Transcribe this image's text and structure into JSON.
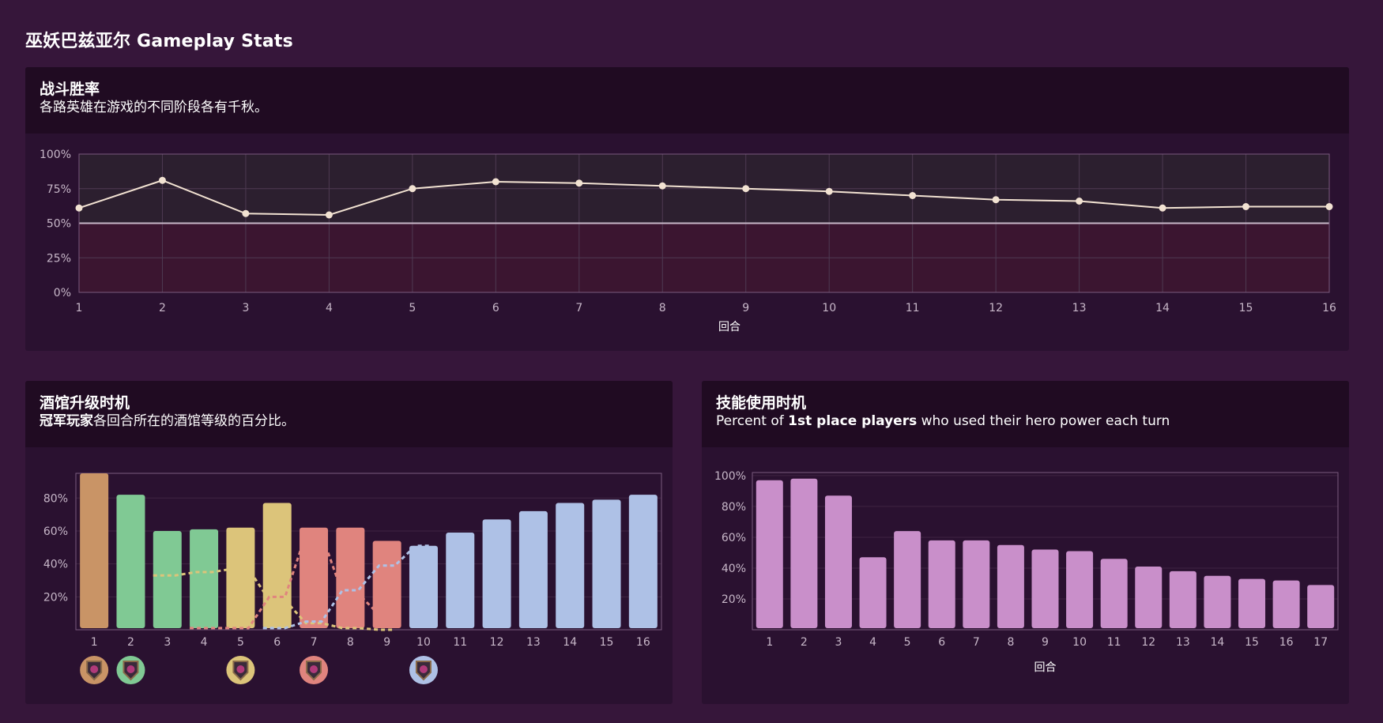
{
  "page": {
    "title": "巫妖巴兹亚尔 Gameplay Stats"
  },
  "colors": {
    "background": "#36163a",
    "panel": "#2a1130",
    "panel_header": "#200b22",
    "line": "#f2e2d2",
    "power_bar": "#c98fca",
    "tier_colors": [
      "#c99466",
      "#80c994",
      "#dcc47a",
      "#e0847e",
      "#aec1e6"
    ]
  },
  "winrate": {
    "title": "战斗胜率",
    "subtitle": "各路英雄在游戏的不同阶段各有千秋。"
  },
  "tavern": {
    "title": "酒馆升级时机",
    "subtitle_bold": "冠军玩家",
    "subtitle_rest": "各回合所在的酒馆等级的百分比。",
    "tier_icons": [
      "tier-1-icon",
      "tier-2-icon",
      "tier-3-icon",
      "tier-4-icon",
      "tier-5-icon"
    ]
  },
  "power": {
    "title": "技能使用时机",
    "subtitle_pre": "Percent of ",
    "subtitle_bold": "1st place players",
    "subtitle_post": " who used their hero power each turn"
  },
  "chart_data": [
    {
      "type": "line",
      "title": "战斗胜率",
      "xlabel": "回合",
      "ylabel": "",
      "x": [
        1,
        2,
        3,
        4,
        5,
        6,
        7,
        8,
        9,
        10,
        11,
        12,
        13,
        14,
        15,
        16
      ],
      "values": [
        61,
        81,
        57,
        56,
        75,
        80,
        79,
        77,
        75,
        73,
        70,
        67,
        66,
        61,
        62,
        62
      ],
      "ylim": [
        0,
        100
      ],
      "yticks": [
        "0%",
        "25%",
        "50%",
        "75%",
        "100%"
      ],
      "reference_line": 50,
      "grid": true
    },
    {
      "type": "bar",
      "title": "酒馆升级时机",
      "xlabel": "",
      "categories": [
        "1",
        "2",
        "3",
        "4",
        "5",
        "6",
        "7",
        "8",
        "9",
        "10",
        "11",
        "12",
        "13",
        "14",
        "15",
        "16"
      ],
      "values": [
        95,
        82,
        60,
        61,
        62,
        77,
        62,
        62,
        54,
        51,
        59,
        67,
        72,
        77,
        79,
        82
      ],
      "bar_tier": [
        1,
        2,
        2,
        2,
        3,
        3,
        4,
        4,
        4,
        5,
        5,
        5,
        5,
        5,
        5,
        5
      ],
      "ylim": [
        0,
        95
      ],
      "yticks": [
        "20%",
        "40%",
        "60%",
        "80%"
      ],
      "series": [
        {
          "tier": 3,
          "values": [
            null,
            null,
            33,
            35,
            37,
            18,
            4,
            1,
            0,
            null,
            null,
            null,
            null,
            null,
            null,
            null
          ]
        },
        {
          "tier": 4,
          "values": [
            null,
            null,
            null,
            1,
            1,
            20,
            58,
            22,
            9,
            null,
            null,
            null,
            null,
            null,
            null,
            null
          ]
        },
        {
          "tier": 5,
          "values": [
            null,
            null,
            null,
            null,
            null,
            1,
            5,
            24,
            39,
            51,
            null,
            null,
            null,
            null,
            null,
            null
          ]
        }
      ],
      "tier_icon_turns": [
        1,
        2,
        5,
        7,
        10
      ]
    },
    {
      "type": "bar",
      "title": "技能使用时机",
      "xlabel": "回合",
      "categories": [
        "1",
        "2",
        "3",
        "4",
        "5",
        "6",
        "7",
        "8",
        "9",
        "10",
        "11",
        "12",
        "13",
        "14",
        "15",
        "16",
        "17"
      ],
      "values": [
        97,
        98,
        87,
        47,
        64,
        58,
        58,
        55,
        52,
        51,
        46,
        41,
        38,
        35,
        33,
        32,
        29
      ],
      "ylim": [
        0,
        102
      ],
      "yticks": [
        "20%",
        "40%",
        "60%",
        "80%",
        "100%"
      ],
      "grid": true
    }
  ]
}
